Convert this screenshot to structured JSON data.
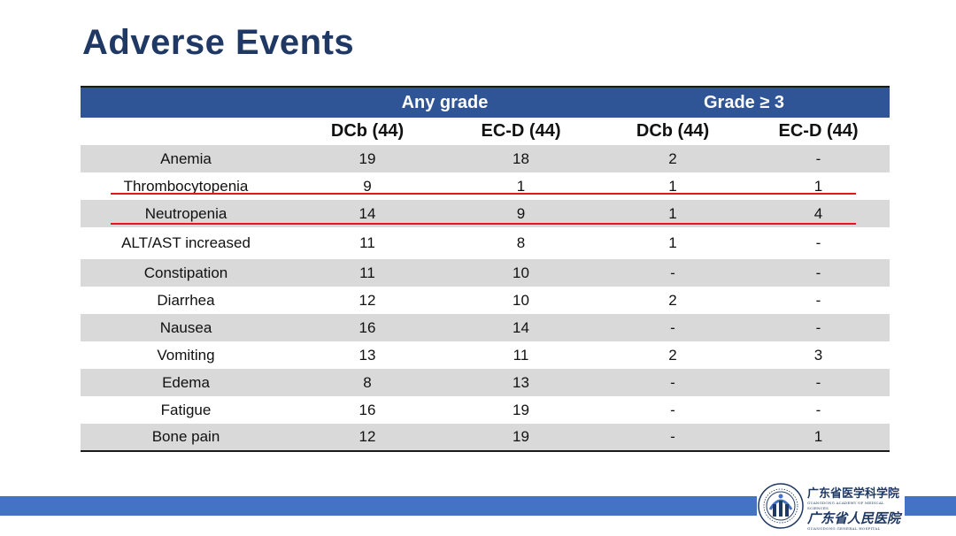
{
  "slide": {
    "title": "Adverse Events"
  },
  "table": {
    "group_headers": [
      "",
      "Any grade",
      "Grade ≥ 3"
    ],
    "columns": [
      "",
      "DCb (44)",
      "EC-D (44)",
      "DCb (44)",
      "EC-D (44)"
    ],
    "rows": [
      [
        "Anemia",
        "19",
        "18",
        "2",
        "-"
      ],
      [
        "Thrombocytopenia",
        "9",
        "1",
        "1",
        "1"
      ],
      [
        "Neutropenia",
        "14",
        "9",
        "1",
        "4"
      ],
      [
        "ALT/AST increased",
        "11",
        "8",
        "1",
        "-"
      ],
      [
        "Constipation",
        "11",
        "10",
        "-",
        "-"
      ],
      [
        "Diarrhea",
        "12",
        "10",
        "2",
        "-"
      ],
      [
        "Nausea",
        "16",
        "14",
        "-",
        "-"
      ],
      [
        "Vomiting",
        "13",
        "11",
        "2",
        "3"
      ],
      [
        "Edema",
        "8",
        "13",
        "-",
        "-"
      ],
      [
        "Fatigue",
        "16",
        "19",
        "-",
        "-"
      ],
      [
        "Bone pain",
        "12",
        "19",
        "-",
        "1"
      ]
    ],
    "highlighted_rows": [
      "Thrombocytopenia",
      "Neutropenia"
    ],
    "highlight_color": "#e8141b",
    "header_color": "#2f5597",
    "shade_color": "#d9d9d9"
  },
  "footer": {
    "logo_line1": "广东省医学科学院",
    "logo_line1_sub": "GUANGDONG ACADEMY OF MEDICAL SCIENCES",
    "logo_line2": "广东省人民医院",
    "logo_line2_sub": "GUANGDONG GENERAL HOSPITAL",
    "bar_color": "#4472c4"
  }
}
